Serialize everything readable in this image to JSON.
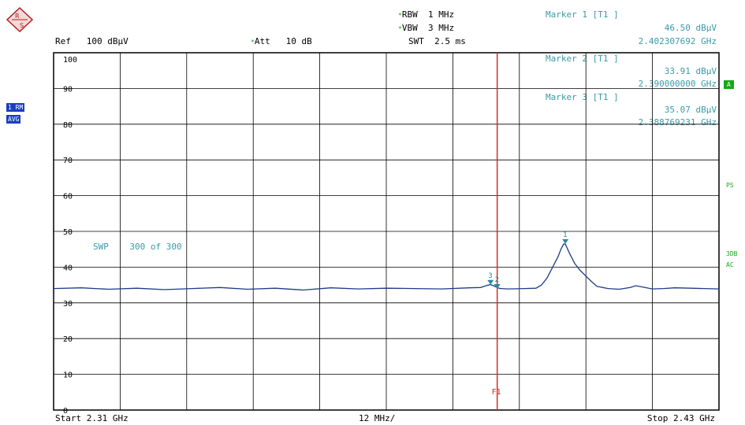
{
  "header": {
    "ref_label": "Ref",
    "ref_value": "100 dBµV",
    "att_label": "Att",
    "att_value": "10 dB",
    "rbw_label": "RBW",
    "rbw_value": "1 MHz",
    "vbw_label": "VBW",
    "vbw_value": "3 MHz",
    "swt_label": "SWT",
    "swt_value": "2.5 ms"
  },
  "markers": [
    {
      "title": "Marker 1 [T1 ]",
      "level": "46.50 dBµV",
      "freq": "2.402307692 GHz",
      "label": "1"
    },
    {
      "title": "Marker 2 [T1 ]",
      "level": "33.91 dBµV",
      "freq": "2.390000000 GHz",
      "label": "2"
    },
    {
      "title": "Marker 3 [T1 ]",
      "level": "35.07 dBµV",
      "freq": "2.388769231 GHz",
      "label": "3"
    }
  ],
  "left_tags": {
    "trace": "1 RM",
    "detector": "AVG"
  },
  "right_tags": {
    "a": "A",
    "ps": "PS",
    "three": "3DB",
    "ac": "AC"
  },
  "sweep": {
    "label": "SWP",
    "count": "300 of 300"
  },
  "footer": {
    "start": "Start  2.31 GHz",
    "span": "12 MHz/",
    "stop": "Stop  2.43 GHz"
  },
  "chart_data": {
    "type": "line",
    "y_ticks": [
      "100",
      "90",
      "80",
      "70",
      "60",
      "50",
      "40",
      "30",
      "20",
      "10",
      "0"
    ],
    "ylim": [
      0,
      100
    ],
    "xlim": [
      2.31,
      2.43
    ],
    "x_unit": "GHz",
    "y_unit": "dBµV",
    "line_label": "F1",
    "line_freq": 2.39,
    "line_color": "#d03020",
    "trace_color": "#1e3a8a",
    "grid_color": "#000000",
    "series": [
      {
        "x": [
          2.31,
          2.315,
          2.32,
          2.325,
          2.33,
          2.335,
          2.34,
          2.345,
          2.35,
          2.355,
          2.36,
          2.365,
          2.37,
          2.375,
          2.38,
          2.385,
          2.387,
          2.388,
          2.3888,
          2.3895,
          2.39,
          2.3905,
          2.392,
          2.395,
          2.397,
          2.398,
          2.399,
          2.4,
          2.401,
          2.4015,
          2.402,
          2.4023,
          2.403,
          2.404,
          2.405,
          2.406,
          2.407,
          2.408,
          2.41,
          2.412,
          2.414,
          2.415,
          2.416,
          2.418,
          2.42,
          2.422,
          2.425,
          2.43
        ],
        "y": [
          34.0,
          34.2,
          33.8,
          34.1,
          33.7,
          34.0,
          34.3,
          33.8,
          34.1,
          33.6,
          34.2,
          33.9,
          34.1,
          34.0,
          33.9,
          34.2,
          34.3,
          34.8,
          35.1,
          34.7,
          34.3,
          34.0,
          33.9,
          34.0,
          34.1,
          35.0,
          37.0,
          40.0,
          43.0,
          45.0,
          46.5,
          46.4,
          44.0,
          41.0,
          39.0,
          37.5,
          36.0,
          34.6,
          34.0,
          33.8,
          34.3,
          34.8,
          34.5,
          33.9,
          34.0,
          34.2,
          34.1,
          33.9
        ]
      }
    ],
    "marker_points": [
      {
        "label": "1",
        "x": 2.4023,
        "y": 46.5
      },
      {
        "label": "2",
        "x": 2.39,
        "y": 33.91
      },
      {
        "label": "3",
        "x": 2.3888,
        "y": 35.07
      }
    ]
  }
}
